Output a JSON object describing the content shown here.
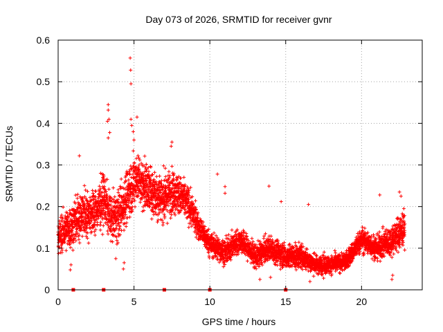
{
  "chart_data": {
    "type": "scatter",
    "title": "Day 073 of 2026, SRMTID for receiver gvnr",
    "xlabel": "GPS time / hours",
    "ylabel": "SRMTID / TECUs",
    "xlim": [
      0,
      24
    ],
    "ylim": [
      0,
      0.6
    ],
    "xticks": [
      0,
      5,
      10,
      15,
      20
    ],
    "xtick_labels": [
      "0",
      "5",
      "10",
      "15",
      "20"
    ],
    "yticks": [
      0,
      0.1,
      0.2,
      0.3,
      0.4,
      0.5,
      0.6
    ],
    "ytick_labels": [
      "0",
      "0.1",
      "0.2",
      "0.3",
      "0.4",
      "0.5",
      "0.6"
    ],
    "grid": true,
    "marker": "+",
    "color": "#ff0000",
    "zero_markers_x": [
      1.0,
      3.0,
      7.0,
      10.0,
      15.0
    ],
    "envelope": [
      {
        "t": 0.0,
        "center": 0.13,
        "spread": 0.06
      },
      {
        "t": 0.8,
        "center": 0.15,
        "spread": 0.07
      },
      {
        "t": 1.5,
        "center": 0.18,
        "spread": 0.08
      },
      {
        "t": 2.5,
        "center": 0.19,
        "spread": 0.07
      },
      {
        "t": 3.0,
        "center": 0.22,
        "spread": 0.08
      },
      {
        "t": 3.5,
        "center": 0.17,
        "spread": 0.07
      },
      {
        "t": 4.0,
        "center": 0.18,
        "spread": 0.08
      },
      {
        "t": 4.7,
        "center": 0.24,
        "spread": 0.09
      },
      {
        "t": 5.2,
        "center": 0.27,
        "spread": 0.08
      },
      {
        "t": 6.0,
        "center": 0.24,
        "spread": 0.08
      },
      {
        "t": 7.0,
        "center": 0.22,
        "spread": 0.08
      },
      {
        "t": 7.6,
        "center": 0.24,
        "spread": 0.07
      },
      {
        "t": 8.5,
        "center": 0.21,
        "spread": 0.06
      },
      {
        "t": 9.3,
        "center": 0.15,
        "spread": 0.04
      },
      {
        "t": 10.0,
        "center": 0.11,
        "spread": 0.04
      },
      {
        "t": 11.0,
        "center": 0.09,
        "spread": 0.04
      },
      {
        "t": 12.0,
        "center": 0.12,
        "spread": 0.04
      },
      {
        "t": 13.0,
        "center": 0.08,
        "spread": 0.04
      },
      {
        "t": 14.0,
        "center": 0.1,
        "spread": 0.04
      },
      {
        "t": 15.0,
        "center": 0.08,
        "spread": 0.04
      },
      {
        "t": 16.0,
        "center": 0.08,
        "spread": 0.04
      },
      {
        "t": 17.0,
        "center": 0.06,
        "spread": 0.03
      },
      {
        "t": 18.0,
        "center": 0.06,
        "spread": 0.03
      },
      {
        "t": 19.0,
        "center": 0.07,
        "spread": 0.03
      },
      {
        "t": 20.0,
        "center": 0.12,
        "spread": 0.04
      },
      {
        "t": 21.0,
        "center": 0.1,
        "spread": 0.04
      },
      {
        "t": 22.0,
        "center": 0.12,
        "spread": 0.05
      },
      {
        "t": 22.8,
        "center": 0.15,
        "spread": 0.06
      }
    ],
    "outliers": [
      {
        "x": 4.75,
        "y": 0.557
      },
      {
        "x": 4.78,
        "y": 0.528
      },
      {
        "x": 4.8,
        "y": 0.495
      },
      {
        "x": 3.3,
        "y": 0.445
      },
      {
        "x": 3.3,
        "y": 0.432
      },
      {
        "x": 3.35,
        "y": 0.41
      },
      {
        "x": 3.25,
        "y": 0.405
      },
      {
        "x": 3.4,
        "y": 0.378
      },
      {
        "x": 3.3,
        "y": 0.365
      },
      {
        "x": 4.8,
        "y": 0.41
      },
      {
        "x": 4.85,
        "y": 0.395
      },
      {
        "x": 5.2,
        "y": 0.415
      },
      {
        "x": 4.95,
        "y": 0.38
      },
      {
        "x": 5.0,
        "y": 0.36
      },
      {
        "x": 7.5,
        "y": 0.355
      },
      {
        "x": 7.45,
        "y": 0.345
      },
      {
        "x": 1.4,
        "y": 0.322
      },
      {
        "x": 2.8,
        "y": 0.28
      },
      {
        "x": 10.5,
        "y": 0.278
      },
      {
        "x": 11.0,
        "y": 0.248
      },
      {
        "x": 11.0,
        "y": 0.232
      },
      {
        "x": 13.9,
        "y": 0.249
      },
      {
        "x": 14.7,
        "y": 0.212
      },
      {
        "x": 16.5,
        "y": 0.205
      },
      {
        "x": 21.2,
        "y": 0.228
      },
      {
        "x": 22.5,
        "y": 0.235
      },
      {
        "x": 22.6,
        "y": 0.225
      },
      {
        "x": 0.8,
        "y": 0.048
      },
      {
        "x": 0.85,
        "y": 0.06
      },
      {
        "x": 4.3,
        "y": 0.05
      },
      {
        "x": 4.35,
        "y": 0.065
      },
      {
        "x": 3.8,
        "y": 0.075
      },
      {
        "x": 13.3,
        "y": 0.025
      },
      {
        "x": 14.0,
        "y": 0.03
      },
      {
        "x": 22.0,
        "y": 0.025
      },
      {
        "x": 22.05,
        "y": 0.035
      },
      {
        "x": 16.6,
        "y": 0.02
      },
      {
        "x": 17.5,
        "y": 0.028
      }
    ]
  }
}
